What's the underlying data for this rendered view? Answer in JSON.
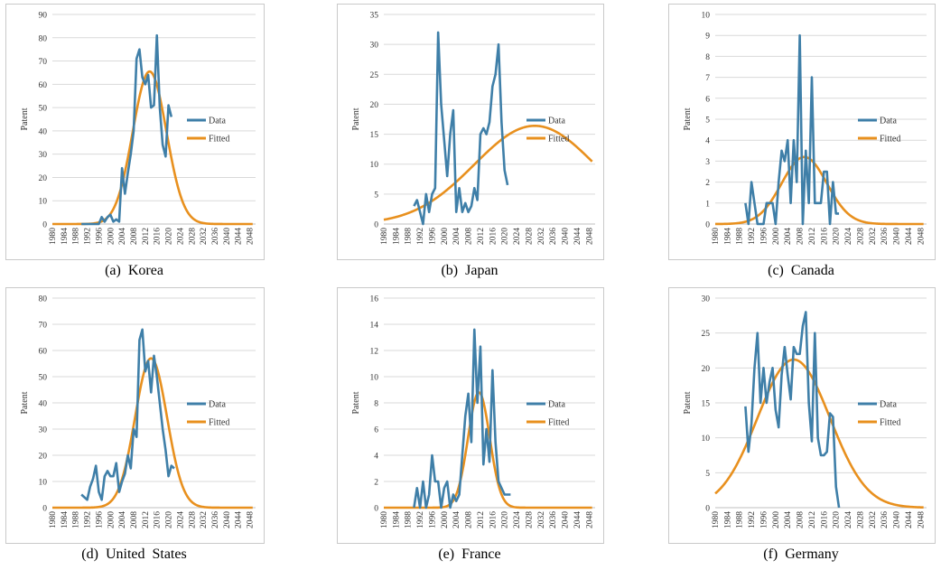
{
  "figure": {
    "series_names": [
      "Data",
      "Fitted"
    ],
    "colors": {
      "data": "#3f7fa8",
      "fitted": "#e8901e",
      "grid": "#d9d9d9",
      "frame": "#c9c9c9"
    }
  },
  "chart_data": [
    {
      "type": "line",
      "caption": "(a)  Korea",
      "ylabel": "Patent",
      "ylim": [
        0,
        90
      ],
      "ystep": 10,
      "xlim": [
        1980,
        2050
      ],
      "xticks": [
        1980,
        1984,
        1988,
        1992,
        1996,
        2000,
        2004,
        2008,
        2012,
        2016,
        2020,
        2024,
        2028,
        2032,
        2036,
        2040,
        2044,
        2048
      ],
      "legend": [
        "Data",
        "Fitted"
      ],
      "series": [
        {
          "name": "Data",
          "x": [
            1990,
            1992,
            1994,
            1996,
            1997,
            1998,
            1999,
            2000,
            2001,
            2002,
            2003,
            2004,
            2005,
            2006,
            2007,
            2008,
            2009,
            2010,
            2011,
            2012,
            2013,
            2014,
            2015,
            2016,
            2017,
            2018,
            2019,
            2020,
            2021
          ],
          "y": [
            0,
            0,
            0,
            0,
            3,
            1,
            3,
            4,
            1,
            2,
            1,
            24,
            13,
            22,
            30,
            40,
            71,
            75,
            63,
            60,
            64,
            50,
            51,
            81,
            50,
            34,
            29,
            51,
            46
          ]
        },
        {
          "name": "Fitted",
          "model": "gaussian",
          "peak_year": 2013.5,
          "peak": 65.5,
          "sigma": 5.8,
          "xrange": [
            1980,
            2049
          ]
        }
      ]
    },
    {
      "type": "line",
      "caption": "(b)  Japan",
      "ylabel": "Patent",
      "ylim": [
        0,
        35
      ],
      "ystep": 5,
      "xlim": [
        1980,
        2050
      ],
      "xticks": [
        1980,
        1984,
        1988,
        1992,
        1996,
        2000,
        2004,
        2008,
        2012,
        2016,
        2020,
        2024,
        2028,
        2032,
        2036,
        2040,
        2044,
        2048
      ],
      "legend": [
        "Data",
        "Fitted"
      ],
      "series": [
        {
          "name": "Data",
          "x": [
            1990,
            1991,
            1992,
            1993,
            1994,
            1995,
            1996,
            1997,
            1998,
            1999,
            2000,
            2001,
            2002,
            2003,
            2004,
            2005,
            2006,
            2007,
            2008,
            2009,
            2010,
            2011,
            2012,
            2013,
            2014,
            2015,
            2016,
            2017,
            2018,
            2019,
            2020,
            2021
          ],
          "y": [
            3,
            4,
            2,
            0,
            5,
            2,
            5,
            6,
            32,
            20,
            14,
            8,
            15,
            19,
            2,
            6,
            2,
            3.5,
            2,
            3,
            6,
            4,
            15,
            16,
            15,
            17,
            23,
            25,
            30,
            17,
            9,
            6.5
          ]
        },
        {
          "name": "Fitted",
          "model": "gaussian",
          "peak_year": 2030,
          "peak": 16.4,
          "sigma": 20,
          "xrange": [
            1980,
            2049
          ]
        }
      ]
    },
    {
      "type": "line",
      "caption": "(c)  Canada",
      "ylabel": "Patent",
      "ylim": [
        0,
        10
      ],
      "ystep": 1,
      "xlim": [
        1980,
        2050
      ],
      "xticks": [
        1980,
        1984,
        1988,
        1992,
        1996,
        2000,
        2004,
        2008,
        2012,
        2016,
        2020,
        2024,
        2028,
        2032,
        2036,
        2040,
        2044,
        2048
      ],
      "legend": [
        "Data",
        "Fitted"
      ],
      "series": [
        {
          "name": "Data",
          "x": [
            1990,
            1991,
            1992,
            1993,
            1994,
            1995,
            1996,
            1997,
            1998,
            1999,
            2000,
            2001,
            2002,
            2003,
            2004,
            2005,
            2006,
            2007,
            2008,
            2009,
            2010,
            2011,
            2012,
            2013,
            2014,
            2015,
            2016,
            2017,
            2018,
            2019,
            2020,
            2021
          ],
          "y": [
            1,
            0,
            2,
            1,
            0,
            0,
            0,
            1,
            1,
            1,
            0,
            2,
            3.5,
            3,
            4,
            1,
            4,
            2,
            9,
            0,
            3.5,
            1,
            7,
            1,
            1,
            1,
            2.5,
            2.5,
            0,
            2,
            0.5,
            0.5
          ]
        },
        {
          "name": "Fitted",
          "model": "gaussian",
          "peak_year": 2009.5,
          "peak": 3.2,
          "sigma": 7.5,
          "xrange": [
            1980,
            2049
          ]
        }
      ]
    },
    {
      "type": "line",
      "caption": "(d)  United  States",
      "ylabel": "Patent",
      "ylim": [
        0,
        80
      ],
      "ystep": 10,
      "xlim": [
        1980,
        2050
      ],
      "xticks": [
        1980,
        1984,
        1988,
        1992,
        1996,
        2000,
        2004,
        2008,
        2012,
        2016,
        2020,
        2024,
        2028,
        2032,
        2036,
        2040,
        2044,
        2048
      ],
      "legend": [
        "Data",
        "Fitted"
      ],
      "series": [
        {
          "name": "Data",
          "x": [
            1990,
            1991,
            1992,
            1993,
            1994,
            1995,
            1996,
            1997,
            1998,
            1999,
            2000,
            2001,
            2002,
            2003,
            2004,
            2005,
            2006,
            2007,
            2008,
            2009,
            2010,
            2011,
            2012,
            2013,
            2014,
            2015,
            2016,
            2017,
            2018,
            2019,
            2020,
            2021,
            2022
          ],
          "y": [
            5,
            4,
            3,
            8,
            11,
            16,
            6,
            3,
            12,
            14,
            12,
            12,
            17,
            6,
            10,
            13,
            20,
            15,
            30,
            27,
            64,
            68,
            52,
            56,
            44,
            58,
            50,
            40,
            30,
            22,
            12,
            16,
            15
          ]
        },
        {
          "name": "Fitted",
          "model": "gaussian",
          "peak_year": 2014,
          "peak": 57,
          "sigma": 5.5,
          "xrange": [
            1980,
            2049
          ]
        }
      ]
    },
    {
      "type": "line",
      "caption": "(e)  France",
      "ylabel": "Patent",
      "ylim": [
        0,
        16
      ],
      "ystep": 2,
      "xlim": [
        1980,
        2050
      ],
      "xticks": [
        1980,
        1984,
        1988,
        1992,
        1996,
        2000,
        2004,
        2008,
        2012,
        2016,
        2020,
        2024,
        2028,
        2032,
        2036,
        2040,
        2044,
        2048
      ],
      "legend": [
        "Data",
        "Fitted"
      ],
      "series": [
        {
          "name": "Data",
          "x": [
            1990,
            1991,
            1992,
            1993,
            1994,
            1995,
            1996,
            1997,
            1998,
            1999,
            2000,
            2001,
            2002,
            2003,
            2004,
            2005,
            2006,
            2007,
            2008,
            2009,
            2010,
            2011,
            2012,
            2013,
            2014,
            2015,
            2016,
            2017,
            2018,
            2019,
            2020,
            2021,
            2022
          ],
          "y": [
            0,
            1.5,
            0,
            2,
            0,
            1,
            4,
            2,
            2,
            0,
            1.5,
            2,
            0,
            1,
            0.5,
            1,
            4,
            7,
            8.7,
            5,
            13.6,
            8,
            12.3,
            3.3,
            6,
            3.5,
            10.5,
            5,
            2,
            1.5,
            1,
            1,
            1
          ]
        },
        {
          "name": "Fitted",
          "model": "gaussian",
          "peak_year": 2011.5,
          "peak": 8.8,
          "sigma": 3.6,
          "xrange": [
            1980,
            2049
          ]
        }
      ]
    },
    {
      "type": "line",
      "caption": "(f)  Germany",
      "ylabel": "Patent",
      "ylim": [
        0,
        30
      ],
      "ystep": 5,
      "xlim": [
        1980,
        2050
      ],
      "xticks": [
        1980,
        1984,
        1988,
        1992,
        1996,
        2000,
        2004,
        2008,
        2012,
        2016,
        2020,
        2024,
        2028,
        2032,
        2036,
        2040,
        2044,
        2048
      ],
      "legend": [
        "Data",
        "Fitted"
      ],
      "series": [
        {
          "name": "Data",
          "x": [
            1990,
            1991,
            1992,
            1993,
            1994,
            1995,
            1996,
            1997,
            1998,
            1999,
            2000,
            2001,
            2002,
            2003,
            2004,
            2005,
            2006,
            2007,
            2008,
            2009,
            2010,
            2011,
            2012,
            2013,
            2014,
            2015,
            2016,
            2017,
            2018,
            2019,
            2020,
            2021
          ],
          "y": [
            14.5,
            8,
            12,
            20,
            25,
            15,
            20,
            15,
            18,
            20,
            14,
            11.5,
            19,
            23,
            19,
            15.5,
            23,
            22,
            22,
            26,
            28,
            15,
            9.5,
            25,
            10,
            7.5,
            7.5,
            8,
            13.5,
            13,
            3,
            0
          ]
        },
        {
          "name": "Fitted",
          "model": "gaussian",
          "peak_year": 2006,
          "peak": 21.2,
          "sigma": 12,
          "xrange": [
            1980,
            2049
          ]
        }
      ]
    }
  ]
}
